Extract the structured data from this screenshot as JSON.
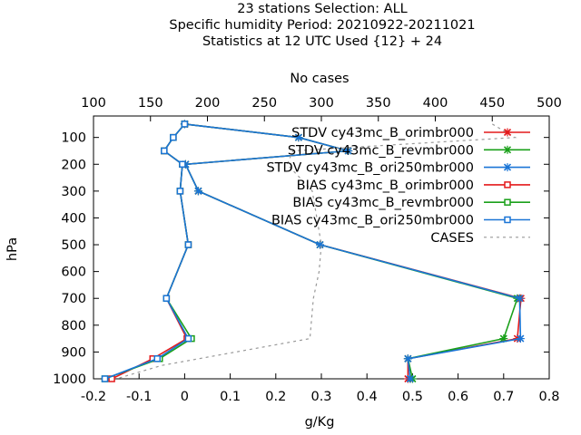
{
  "chart_data": {
    "type": "line",
    "title": [
      "23 stations Selection: ALL",
      "Specific humidity  Period: 20210922-20211021",
      "Statistics at 12 UTC  Used {12} + 24"
    ],
    "x2label": "No cases",
    "xlabel": "g/Kg",
    "ylabel": "hPa",
    "xlim": [
      -0.2,
      0.8
    ],
    "x2lim": [
      100,
      500
    ],
    "ylim": [
      1000,
      20
    ],
    "grid": false,
    "legend_position": "top-right",
    "xticks": [
      "-0.2",
      "-0.1",
      "0",
      "0.1",
      "0.2",
      "0.3",
      "0.4",
      "0.5",
      "0.6",
      "0.7",
      "0.8"
    ],
    "x2ticks": [
      "100",
      "150",
      "200",
      "250",
      "300",
      "350",
      "400",
      "450",
      "500"
    ],
    "yticks": [
      "100",
      "200",
      "300",
      "400",
      "500",
      "600",
      "700",
      "800",
      "900",
      "1000"
    ],
    "series": [
      {
        "name": "STDV cy43mc_B_orimbr000",
        "color": "#e41a1c",
        "marker": "x",
        "axis": "bottom",
        "points": [
          [
            0.0,
            50
          ],
          [
            0.25,
            100
          ],
          [
            0.359,
            150
          ],
          [
            0.002,
            200
          ],
          [
            0.03,
            300
          ],
          [
            0.297,
            500
          ],
          [
            0.738,
            700
          ],
          [
            0.73,
            850
          ],
          [
            0.49,
            925
          ],
          [
            0.49,
            1000
          ]
        ]
      },
      {
        "name": "STDV cy43mc_B_revmbr000",
        "color": "#1aa01a",
        "marker": "x",
        "axis": "bottom",
        "points": [
          [
            0.0,
            50
          ],
          [
            0.25,
            100
          ],
          [
            0.359,
            150
          ],
          [
            0.002,
            200
          ],
          [
            0.03,
            300
          ],
          [
            0.297,
            500
          ],
          [
            0.73,
            700
          ],
          [
            0.7,
            850
          ],
          [
            0.49,
            925
          ],
          [
            0.5,
            1000
          ]
        ]
      },
      {
        "name": "STDV cy43mc_B_ori250mbr000",
        "color": "#1a75d6",
        "marker": "x",
        "axis": "bottom",
        "points": [
          [
            0.0,
            50
          ],
          [
            0.25,
            100
          ],
          [
            0.359,
            150
          ],
          [
            0.002,
            200
          ],
          [
            0.03,
            300
          ],
          [
            0.297,
            500
          ],
          [
            0.735,
            700
          ],
          [
            0.737,
            850
          ],
          [
            0.49,
            925
          ],
          [
            0.495,
            1000
          ]
        ]
      },
      {
        "name": "BIAS cy43mc_B_orimbr000",
        "color": "#e41a1c",
        "marker": "square",
        "axis": "bottom",
        "points": [
          [
            0.0,
            50
          ],
          [
            -0.025,
            100
          ],
          [
            -0.045,
            150
          ],
          [
            -0.005,
            200
          ],
          [
            -0.01,
            300
          ],
          [
            0.008,
            500
          ],
          [
            -0.04,
            700
          ],
          [
            0.005,
            850
          ],
          [
            -0.07,
            925
          ],
          [
            -0.16,
            1000
          ]
        ]
      },
      {
        "name": "BIAS cy43mc_B_revmbr000",
        "color": "#1aa01a",
        "marker": "square",
        "axis": "bottom",
        "points": [
          [
            0.0,
            50
          ],
          [
            -0.025,
            100
          ],
          [
            -0.045,
            150
          ],
          [
            -0.005,
            200
          ],
          [
            -0.01,
            300
          ],
          [
            0.008,
            500
          ],
          [
            -0.04,
            700
          ],
          [
            0.015,
            850
          ],
          [
            -0.055,
            925
          ],
          [
            -0.175,
            1000
          ]
        ]
      },
      {
        "name": "BIAS cy43mc_B_ori250mbr000",
        "color": "#1a75d6",
        "marker": "square",
        "axis": "bottom",
        "points": [
          [
            0.0,
            50
          ],
          [
            -0.025,
            100
          ],
          [
            -0.045,
            150
          ],
          [
            -0.005,
            200
          ],
          [
            -0.01,
            300
          ],
          [
            0.008,
            500
          ],
          [
            -0.04,
            700
          ],
          [
            0.008,
            850
          ],
          [
            -0.06,
            925
          ],
          [
            -0.175,
            1000
          ]
        ]
      },
      {
        "name": "CASES",
        "color": "#999999",
        "marker": "none",
        "dashed": true,
        "axis": "top",
        "points": [
          [
            450,
            50
          ],
          [
            470,
            100
          ],
          [
            275,
            150
          ],
          [
            270,
            200
          ],
          [
            292,
            300
          ],
          [
            300,
            500
          ],
          [
            298,
            600
          ],
          [
            293,
            700
          ],
          [
            290,
            850
          ],
          [
            160,
            950
          ],
          [
            120,
            1000
          ]
        ]
      }
    ]
  }
}
